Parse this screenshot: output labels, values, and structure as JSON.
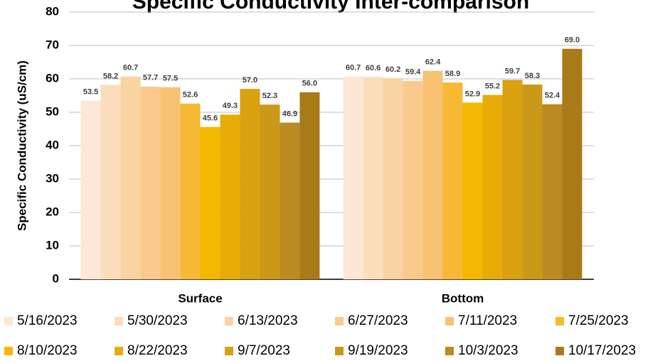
{
  "chart_data": {
    "type": "bar",
    "title": "Specific Conductivity Inter-comparison",
    "y_label": "Specific Conductivity (uS/cm)",
    "categories": [
      "Surface",
      "Bottom"
    ],
    "series": [
      {
        "name": "5/16/2023",
        "color": "#fce8d4",
        "values": [
          53.5,
          60.7
        ],
        "value_labels": [
          "53.5",
          "60.7"
        ]
      },
      {
        "name": "5/30/2023",
        "color": "#fbddbb",
        "values": [
          58.2,
          60.6
        ],
        "value_labels": [
          "58.2",
          "60.6"
        ]
      },
      {
        "name": "6/13/2023",
        "color": "#fad3a3",
        "values": [
          60.7,
          60.2
        ],
        "value_labels": [
          "60.7",
          "60.2"
        ]
      },
      {
        "name": "6/27/2023",
        "color": "#f9ca8b",
        "values": [
          57.7,
          59.4
        ],
        "value_labels": [
          "57.7",
          "59.4"
        ]
      },
      {
        "name": "7/11/2023",
        "color": "#f8c172",
        "values": [
          57.5,
          62.4
        ],
        "value_labels": [
          "57.5",
          "62.4"
        ]
      },
      {
        "name": "7/25/2023",
        "color": "#f7b935",
        "values": [
          52.6,
          58.9
        ],
        "value_labels": [
          "52.6",
          "58.9"
        ]
      },
      {
        "name": "8/10/2023",
        "color": "#f5b800",
        "values": [
          45.6,
          52.9
        ],
        "value_labels": [
          "45.6",
          "52.9"
        ]
      },
      {
        "name": "8/22/2023",
        "color": "#e8ac08",
        "values": [
          49.3,
          55.2
        ],
        "value_labels": [
          "49.3",
          "55.2"
        ]
      },
      {
        "name": "9/7/2023",
        "color": "#d9a110",
        "values": [
          57.0,
          59.7
        ],
        "value_labels": [
          "57.0",
          "59.7"
        ]
      },
      {
        "name": "9/19/2023",
        "color": "#cc9818",
        "values": [
          52.3,
          58.3
        ],
        "value_labels": [
          "52.3",
          "58.3"
        ]
      },
      {
        "name": "10/3/2023",
        "color": "#bb8a20",
        "values": [
          46.9,
          52.4
        ],
        "value_labels": [
          "46.9",
          "52.4"
        ]
      },
      {
        "name": "10/17/2023",
        "color": "#a87a18",
        "values": [
          56.0,
          69.0
        ],
        "value_labels": [
          "56.0",
          "69.0"
        ]
      }
    ],
    "ylim": [
      0,
      80
    ],
    "yticks": [
      0,
      10,
      20,
      30,
      40,
      50,
      60,
      70,
      80
    ],
    "grid": true,
    "legend": "bottom"
  }
}
